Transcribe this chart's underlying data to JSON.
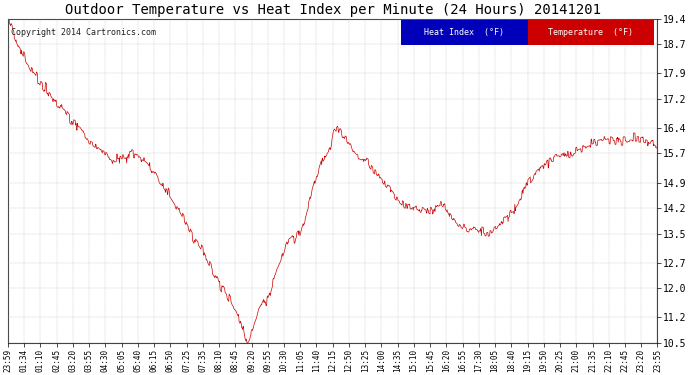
{
  "title": "Outdoor Temperature vs Heat Index per Minute (24 Hours) 20141201",
  "copyright": "Copyright 2014 Cartronics.com",
  "ylim": [
    10.5,
    19.4
  ],
  "yticks": [
    10.5,
    11.2,
    12.0,
    12.7,
    13.5,
    14.2,
    14.9,
    15.7,
    16.4,
    17.2,
    17.9,
    18.7,
    19.4
  ],
  "line_color": "#cc0000",
  "heat_index_bg": "#0000bb",
  "temp_bg": "#cc0000",
  "background_color": "#ffffff",
  "grid_color": "#999999",
  "title_fontsize": 10,
  "legend_heat_label": "Heat Index  (°F)",
  "legend_temp_label": "Temperature  (°F)",
  "x_labels": [
    "23:59",
    "01:34",
    "01:10",
    "02:45",
    "03:20",
    "03:55",
    "04:30",
    "05:05",
    "05:40",
    "06:15",
    "06:50",
    "07:25",
    "07:35",
    "08:10",
    "08:45",
    "09:20",
    "09:55",
    "10:30",
    "11:05",
    "11:40",
    "12:15",
    "12:50",
    "13:25",
    "14:00",
    "14:35",
    "15:10",
    "15:45",
    "16:20",
    "16:55",
    "17:30",
    "18:05",
    "18:40",
    "19:15",
    "19:50",
    "20:25",
    "21:00",
    "21:35",
    "22:10",
    "22:45",
    "23:20",
    "23:55"
  ],
  "key_points": [
    [
      0,
      19.35
    ],
    [
      10,
      19.1
    ],
    [
      25,
      18.6
    ],
    [
      50,
      18.0
    ],
    [
      75,
      17.6
    ],
    [
      100,
      17.2
    ],
    [
      120,
      16.9
    ],
    [
      140,
      16.6
    ],
    [
      160,
      16.4
    ],
    [
      180,
      16.0
    ],
    [
      195,
      15.85
    ],
    [
      210,
      15.75
    ],
    [
      225,
      15.6
    ],
    [
      235,
      15.5
    ],
    [
      250,
      15.6
    ],
    [
      265,
      15.55
    ],
    [
      270,
      15.75
    ],
    [
      280,
      15.7
    ],
    [
      295,
      15.55
    ],
    [
      310,
      15.4
    ],
    [
      325,
      15.15
    ],
    [
      340,
      14.9
    ],
    [
      355,
      14.6
    ],
    [
      370,
      14.3
    ],
    [
      385,
      14.0
    ],
    [
      400,
      13.65
    ],
    [
      415,
      13.3
    ],
    [
      430,
      13.0
    ],
    [
      445,
      12.65
    ],
    [
      460,
      12.3
    ],
    [
      475,
      12.0
    ],
    [
      490,
      11.7
    ],
    [
      505,
      11.35
    ],
    [
      515,
      11.1
    ],
    [
      520,
      10.9
    ],
    [
      527,
      10.6
    ],
    [
      531,
      10.52
    ],
    [
      535,
      10.65
    ],
    [
      540,
      10.8
    ],
    [
      545,
      11.05
    ],
    [
      550,
      11.15
    ],
    [
      555,
      11.4
    ],
    [
      560,
      11.5
    ],
    [
      565,
      11.6
    ],
    [
      568,
      11.75
    ],
    [
      572,
      11.55
    ],
    [
      575,
      11.7
    ],
    [
      580,
      11.85
    ],
    [
      585,
      12.1
    ],
    [
      590,
      12.3
    ],
    [
      595,
      12.5
    ],
    [
      600,
      12.65
    ],
    [
      605,
      12.8
    ],
    [
      610,
      13.0
    ],
    [
      615,
      13.2
    ],
    [
      620,
      13.35
    ],
    [
      625,
      13.4
    ],
    [
      630,
      13.45
    ],
    [
      635,
      13.35
    ],
    [
      640,
      13.5
    ],
    [
      645,
      13.6
    ],
    [
      648,
      13.4
    ],
    [
      651,
      13.55
    ],
    [
      655,
      13.7
    ],
    [
      660,
      14.0
    ],
    [
      665,
      14.25
    ],
    [
      670,
      14.5
    ],
    [
      675,
      14.75
    ],
    [
      680,
      14.9
    ],
    [
      685,
      15.1
    ],
    [
      690,
      15.3
    ],
    [
      695,
      15.5
    ],
    [
      700,
      15.6
    ],
    [
      705,
      15.7
    ],
    [
      710,
      15.8
    ],
    [
      715,
      15.9
    ],
    [
      718,
      16.1
    ],
    [
      721,
      16.3
    ],
    [
      724,
      16.4
    ],
    [
      727,
      16.35
    ],
    [
      730,
      16.4
    ],
    [
      733,
      16.3
    ],
    [
      736,
      16.35
    ],
    [
      740,
      16.2
    ],
    [
      745,
      16.1
    ],
    [
      750,
      16.05
    ],
    [
      755,
      15.95
    ],
    [
      760,
      15.85
    ],
    [
      765,
      15.75
    ],
    [
      770,
      15.65
    ],
    [
      775,
      15.6
    ],
    [
      780,
      15.55
    ],
    [
      790,
      15.5
    ],
    [
      800,
      15.4
    ],
    [
      810,
      15.25
    ],
    [
      820,
      15.1
    ],
    [
      830,
      14.95
    ],
    [
      840,
      14.8
    ],
    [
      850,
      14.65
    ],
    [
      860,
      14.5
    ],
    [
      870,
      14.4
    ],
    [
      880,
      14.3
    ],
    [
      890,
      14.25
    ],
    [
      900,
      14.2
    ],
    [
      910,
      14.2
    ],
    [
      920,
      14.15
    ],
    [
      930,
      14.1
    ],
    [
      940,
      14.05
    ],
    [
      948,
      14.2
    ],
    [
      955,
      14.3
    ],
    [
      960,
      14.3
    ],
    [
      965,
      14.25
    ],
    [
      970,
      14.2
    ],
    [
      975,
      14.1
    ],
    [
      980,
      14.0
    ],
    [
      985,
      13.9
    ],
    [
      990,
      13.85
    ],
    [
      995,
      13.8
    ],
    [
      1000,
      13.75
    ],
    [
      1005,
      13.7
    ],
    [
      1010,
      13.65
    ],
    [
      1015,
      13.6
    ],
    [
      1020,
      13.55
    ],
    [
      1030,
      13.6
    ],
    [
      1040,
      13.6
    ],
    [
      1050,
      13.55
    ],
    [
      1060,
      13.5
    ],
    [
      1070,
      13.55
    ],
    [
      1080,
      13.65
    ],
    [
      1090,
      13.75
    ],
    [
      1100,
      13.85
    ],
    [
      1110,
      13.95
    ],
    [
      1115,
      14.05
    ],
    [
      1120,
      14.1
    ],
    [
      1125,
      14.2
    ],
    [
      1130,
      14.3
    ],
    [
      1135,
      14.4
    ],
    [
      1140,
      14.55
    ],
    [
      1145,
      14.7
    ],
    [
      1150,
      14.8
    ],
    [
      1155,
      14.9
    ],
    [
      1160,
      15.0
    ],
    [
      1165,
      15.1
    ],
    [
      1170,
      15.2
    ],
    [
      1180,
      15.3
    ],
    [
      1190,
      15.4
    ],
    [
      1200,
      15.5
    ],
    [
      1210,
      15.55
    ],
    [
      1220,
      15.6
    ],
    [
      1230,
      15.65
    ],
    [
      1240,
      15.7
    ],
    [
      1250,
      15.7
    ],
    [
      1255,
      15.75
    ],
    [
      1260,
      15.8
    ],
    [
      1270,
      15.85
    ],
    [
      1280,
      15.9
    ],
    [
      1290,
      15.95
    ],
    [
      1300,
      16.0
    ],
    [
      1310,
      16.05
    ],
    [
      1320,
      16.1
    ],
    [
      1330,
      16.1
    ],
    [
      1340,
      16.1
    ],
    [
      1350,
      16.1
    ],
    [
      1360,
      16.1
    ],
    [
      1370,
      16.1
    ],
    [
      1380,
      16.1
    ],
    [
      1390,
      16.1
    ],
    [
      1400,
      16.1
    ],
    [
      1410,
      16.05
    ],
    [
      1420,
      16.0
    ],
    [
      1430,
      15.95
    ],
    [
      1439,
      15.9
    ]
  ]
}
